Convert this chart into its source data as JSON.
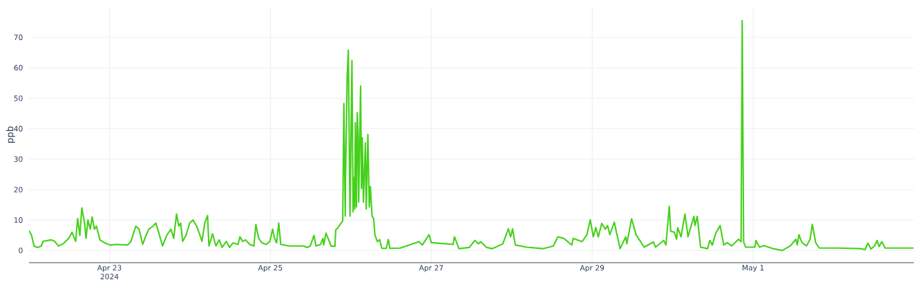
{
  "chart_data": {
    "type": "line",
    "ylabel": "ppb",
    "grid": true,
    "xlim": [
      "2024-04-22T00:00",
      "2024-05-03T00:00"
    ],
    "xticks": [
      {
        "value": "2024-04-23",
        "label": "Apr 23 2024"
      },
      {
        "value": "2024-04-25",
        "label": "Apr 25"
      },
      {
        "value": "2024-04-27",
        "label": "Apr 27"
      },
      {
        "value": "2024-04-29",
        "label": "Apr 29"
      },
      {
        "value": "2024-05-01",
        "label": "May 1"
      }
    ],
    "ylim": [
      -4,
      80
    ],
    "yticks": [
      0,
      10,
      20,
      30,
      40,
      50,
      60,
      70
    ],
    "x": [
      "2024-04-22T00:00",
      "2024-04-22T00:45",
      "2024-04-22T01:30",
      "2024-04-22T02:30",
      "2024-04-22T03:40",
      "2024-04-22T04:10",
      "2024-04-22T06:40",
      "2024-04-22T07:40",
      "2024-04-22T08:45",
      "2024-04-22T10:10",
      "2024-04-22T11:50",
      "2024-04-22T12:50",
      "2024-04-22T13:55",
      "2024-04-22T14:30",
      "2024-04-22T15:10",
      "2024-04-22T15:45",
      "2024-04-22T16:35",
      "2024-04-22T17:00",
      "2024-04-22T17:35",
      "2024-04-22T18:15",
      "2024-04-22T18:50",
      "2024-04-22T19:30",
      "2024-04-22T20:05",
      "2024-04-22T21:10",
      "2024-04-22T22:35",
      "2024-04-23T00:10",
      "2024-04-23T02:15",
      "2024-04-23T05:25",
      "2024-04-23T06:25",
      "2024-04-23T07:50",
      "2024-04-23T08:50",
      "2024-04-23T09:55",
      "2024-04-23T10:55",
      "2024-04-23T11:45",
      "2024-04-23T13:00",
      "2024-04-23T13:50",
      "2024-04-23T14:40",
      "2024-04-23T15:50",
      "2024-04-23T17:05",
      "2024-04-23T18:20",
      "2024-04-23T19:10",
      "2024-04-23T20:00",
      "2024-04-23T20:40",
      "2024-04-23T21:15",
      "2024-04-23T21:50",
      "2024-04-23T22:50",
      "2024-04-23T23:55",
      "2024-04-24T00:55",
      "2024-04-24T02:00",
      "2024-04-24T03:00",
      "2024-04-24T03:35",
      "2024-04-24T04:25",
      "2024-04-24T05:15",
      "2024-04-24T05:40",
      "2024-04-24T06:45",
      "2024-04-24T07:45",
      "2024-04-24T08:45",
      "2024-04-24T09:35",
      "2024-04-24T10:50",
      "2024-04-24T11:50",
      "2024-04-24T12:50",
      "2024-04-24T14:20",
      "2024-04-24T14:55",
      "2024-04-24T15:45",
      "2024-04-24T16:35",
      "2024-04-24T17:50",
      "2024-04-24T19:05",
      "2024-04-24T19:40",
      "2024-04-24T20:30",
      "2024-04-24T21:30",
      "2024-04-24T22:45",
      "2024-04-24T23:50",
      "2024-04-25T00:40",
      "2024-04-25T01:15",
      "2024-04-25T01:50",
      "2024-04-25T02:30",
      "2024-04-25T03:05",
      "2024-04-25T05:45",
      "2024-04-25T09:55",
      "2024-04-25T10:55",
      "2024-04-25T11:55",
      "2024-04-25T13:00",
      "2024-04-25T13:35",
      "2024-04-25T15:00",
      "2024-04-25T15:40",
      "2024-04-25T15:55",
      "2024-04-25T16:35",
      "2024-04-25T18:10",
      "2024-04-25T19:15",
      "2024-04-25T19:30",
      "2024-04-25T20:10",
      "2024-04-25T21:35",
      "2024-04-25T21:55",
      "2024-04-25T22:20",
      "2024-04-25T22:25",
      "2024-04-25T22:55",
      "2024-04-25T23:15",
      "2024-04-25T23:45",
      "2024-04-26T00:20",
      "2024-04-26T00:40",
      "2024-04-26T00:50",
      "2024-04-26T01:10",
      "2024-04-26T01:20",
      "2024-04-26T01:40",
      "2024-04-26T01:55",
      "2024-04-26T02:10",
      "2024-04-26T02:20",
      "2024-04-26T02:55",
      "2024-04-26T03:10",
      "2024-04-26T03:25",
      "2024-04-26T03:45",
      "2024-04-26T04:20",
      "2024-04-26T04:35",
      "2024-04-26T05:05",
      "2024-04-26T05:30",
      "2024-04-26T05:50",
      "2024-04-26T06:20",
      "2024-04-26T06:50",
      "2024-04-26T07:10",
      "2024-04-26T07:55",
      "2024-04-26T08:35",
      "2024-04-26T09:15",
      "2024-04-26T10:35",
      "2024-04-26T11:10",
      "2024-04-26T11:40",
      "2024-04-26T14:45",
      "2024-04-26T20:20",
      "2024-04-26T21:20",
      "2024-04-26T23:20",
      "2024-04-27T00:00",
      "2024-04-27T06:30",
      "2024-04-27T06:55",
      "2024-04-27T08:15",
      "2024-04-27T11:20",
      "2024-04-27T13:00",
      "2024-04-27T14:05",
      "2024-04-27T14:45",
      "2024-04-27T16:30",
      "2024-04-27T18:10",
      "2024-04-27T21:20",
      "2024-04-27T23:00",
      "2024-04-27T23:40",
      "2024-04-28T00:15",
      "2024-04-28T01:05",
      "2024-04-28T04:30",
      "2024-04-28T09:20",
      "2024-04-28T12:25",
      "2024-04-28T13:45",
      "2024-04-28T15:30",
      "2024-04-28T17:55",
      "2024-04-28T18:20",
      "2024-04-28T21:00",
      "2024-04-28T22:25",
      "2024-04-28T23:25",
      "2024-04-29T00:20",
      "2024-04-29T01:05",
      "2024-04-29T01:50",
      "2024-04-29T02:50",
      "2024-04-29T03:55",
      "2024-04-29T04:35",
      "2024-04-29T05:15",
      "2024-04-29T06:35",
      "2024-04-29T08:20",
      "2024-04-29T10:00",
      "2024-04-29T10:20",
      "2024-04-29T11:45",
      "2024-04-29T13:05",
      "2024-04-29T15:30",
      "2024-04-29T18:15",
      "2024-04-29T18:55",
      "2024-04-29T21:20",
      "2024-04-29T22:00",
      "2024-04-29T23:00",
      "2024-04-29T23:25",
      "2024-04-30T00:30",
      "2024-04-30T01:10",
      "2024-04-30T01:30",
      "2024-04-30T02:30",
      "2024-04-30T03:40",
      "2024-04-30T04:35",
      "2024-04-30T06:20",
      "2024-04-30T06:40",
      "2024-04-30T07:20",
      "2024-04-30T08:20",
      "2024-04-30T10:25",
      "2024-04-30T11:05",
      "2024-04-30T11:50",
      "2024-04-30T12:50",
      "2024-04-30T14:10",
      "2024-04-30T15:15",
      "2024-04-30T16:15",
      "2024-04-30T17:35",
      "2024-04-30T19:40",
      "2024-04-30T20:25",
      "2024-04-30T20:45",
      "2024-04-30T21:10",
      "2024-04-30T21:45",
      "2024-05-01T00:30",
      "2024-05-01T00:50",
      "2024-05-01T01:55",
      "2024-05-01T03:15",
      "2024-05-01T06:00",
      "2024-05-01T08:40",
      "2024-05-01T11:05",
      "2024-05-01T12:45",
      "2024-05-01T13:10",
      "2024-05-01T13:40",
      "2024-05-01T14:35",
      "2024-05-01T15:55",
      "2024-05-01T17:00",
      "2024-05-01T17:40",
      "2024-05-01T18:40",
      "2024-05-01T19:45",
      "2024-05-02T01:10",
      "2024-05-02T08:05",
      "2024-05-02T09:25",
      "2024-05-02T10:15",
      "2024-05-02T11:10",
      "2024-05-02T12:15",
      "2024-05-02T13:00",
      "2024-05-02T13:35",
      "2024-05-02T14:25",
      "2024-05-02T15:20",
      "2024-05-02T18:25",
      "2024-05-02T23:50"
    ],
    "series": [
      {
        "color": "#44d11a",
        "values": [
          6.5,
          5,
          1.5,
          1,
          1.5,
          3,
          3.5,
          3,
          1.5,
          2.2,
          4,
          6,
          3,
          10.5,
          5,
          14,
          9,
          4,
          10,
          7,
          11,
          7,
          8,
          3.5,
          2.5,
          1.8,
          2,
          1.8,
          3,
          8,
          7,
          2,
          5,
          7,
          8,
          9,
          6,
          1.5,
          5,
          7,
          4,
          12,
          8,
          9,
          3,
          5,
          9,
          10,
          8,
          5,
          3,
          9,
          11.5,
          1.5,
          5.5,
          1.5,
          3.5,
          1,
          3,
          1,
          2.5,
          2,
          4.5,
          3,
          3.5,
          2,
          1.5,
          8.5,
          4,
          2.5,
          2,
          3,
          7,
          4,
          2.5,
          9,
          2,
          1.5,
          1.5,
          1,
          1.5,
          5,
          1.5,
          2,
          4,
          1.8,
          5.7,
          1.4,
          1.4,
          6.8,
          7.5,
          9.8,
          48.3,
          11.3,
          24,
          57.4,
          65.8,
          11.3,
          62.4,
          12.7,
          24,
          13.6,
          42,
          14.3,
          45.3,
          37.6,
          15.9,
          54,
          20.4,
          37,
          15.9,
          35.4,
          13.6,
          38.1,
          14.3,
          21,
          11.3,
          10.4,
          5.2,
          2.9,
          3.6,
          0.7,
          0.7,
          3.6,
          0.7,
          0.8,
          2.9,
          1.8,
          5.2,
          2.6,
          2,
          4.5,
          0.6,
          1,
          3.3,
          2.2,
          2.9,
          1,
          0.6,
          2.2,
          7.1,
          4.5,
          7.1,
          1.8,
          1.1,
          0.6,
          1.5,
          4.5,
          4,
          1.8,
          4,
          2.9,
          5.2,
          10.1,
          4.5,
          7.5,
          4.5,
          8.9,
          7,
          8.2,
          5.2,
          9.3,
          0.6,
          4.5,
          2.2,
          10.4,
          5.2,
          1.1,
          2.8,
          1.1,
          3.3,
          1.8,
          14.5,
          6.3,
          6,
          3.7,
          7.5,
          4.5,
          12,
          4.5,
          11.2,
          8.2,
          11.2,
          1.1,
          0.6,
          3.3,
          1.8,
          5.6,
          8.2,
          1.8,
          2.6,
          1.5,
          3.7,
          2.9,
          75.5,
          2.9,
          1.1,
          1.1,
          3.3,
          1.1,
          1.6,
          0.6,
          0,
          1.5,
          3.7,
          1.8,
          5.2,
          2.6,
          1.5,
          3.7,
          8.6,
          2.6,
          0.8,
          0.8,
          0.6,
          0.3,
          2.4,
          0.5,
          1.5,
          3.3,
          1.3,
          2.9,
          0.8,
          0.8,
          0.8
        ]
      }
    ]
  }
}
